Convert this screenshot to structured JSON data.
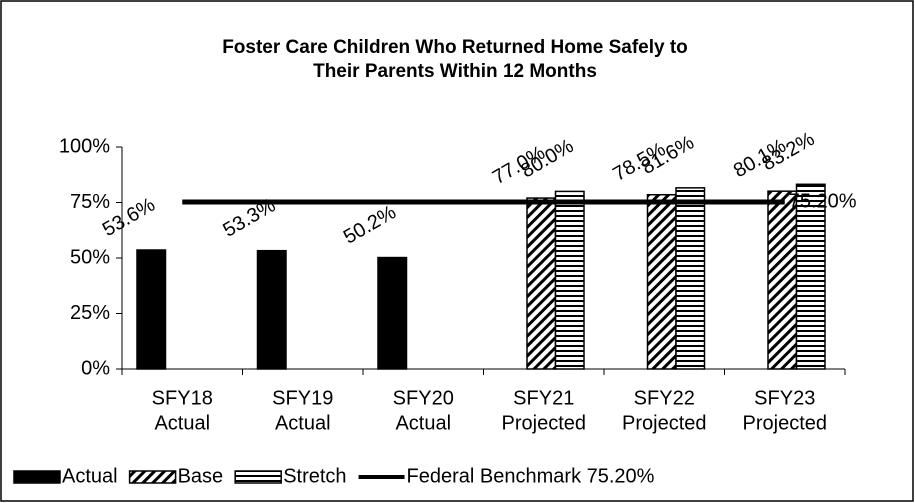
{
  "chart_data": {
    "type": "bar",
    "title": [
      "Foster Care Children Who Returned Home Safely to",
      "Their Parents Within 12 Months"
    ],
    "categories": [
      [
        "SFY18",
        "Actual"
      ],
      [
        "SFY19",
        "Actual"
      ],
      [
        "SFY20",
        "Actual"
      ],
      [
        "SFY21",
        "Projected"
      ],
      [
        "SFY22",
        "Projected"
      ],
      [
        "SFY23",
        "Projected"
      ]
    ],
    "series": [
      {
        "name": "Actual",
        "color": "#000000",
        "pattern": "solid",
        "values": [
          53.6,
          53.3,
          50.2,
          null,
          null,
          null
        ],
        "value_labels": [
          "53.6%",
          "53.3%",
          "50.2%",
          null,
          null,
          null
        ]
      },
      {
        "name": "Base",
        "color": "#000000",
        "pattern": "diagonal",
        "values": [
          null,
          null,
          null,
          77.0,
          78.5,
          80.1
        ],
        "value_labels": [
          null,
          null,
          null,
          "77.0%",
          "78.5%",
          "80.1%"
        ]
      },
      {
        "name": "Stretch",
        "color": "#000000",
        "pattern": "horizontal",
        "values": [
          null,
          null,
          null,
          80.0,
          81.6,
          83.2
        ],
        "value_labels": [
          null,
          null,
          null,
          "80.0%",
          "81.6%",
          "83.2%"
        ]
      }
    ],
    "benchmark": {
      "name": "Federal Benchmark 75.20%",
      "value": 75.2,
      "label": "75.20%",
      "color": "#000000"
    },
    "ylim": [
      0,
      100
    ],
    "yticks": [
      {
        "value": 0,
        "label": "0%"
      },
      {
        "value": 25,
        "label": "25%"
      },
      {
        "value": 50,
        "label": "50%"
      },
      {
        "value": 75,
        "label": "75%"
      },
      {
        "value": 100,
        "label": "100%"
      }
    ],
    "grid": false,
    "legend": "bottom"
  }
}
